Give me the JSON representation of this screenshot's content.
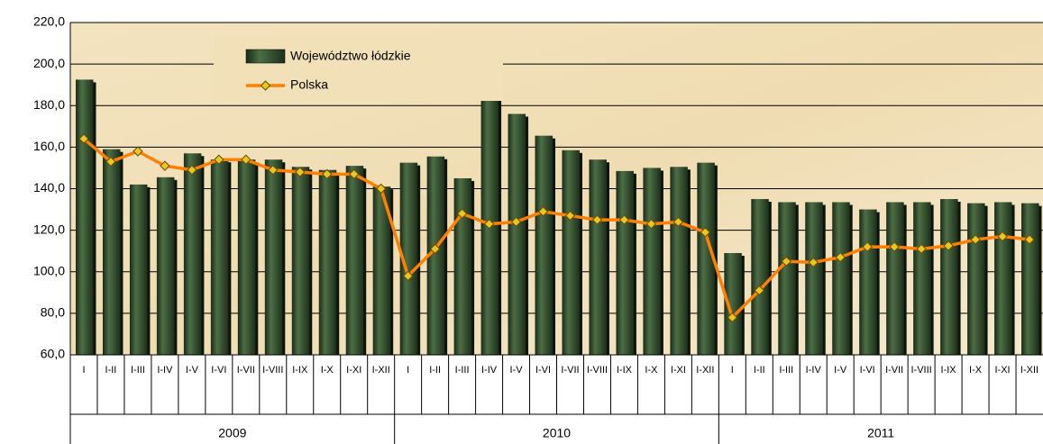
{
  "chart_data": {
    "type": "bar-line",
    "categories": [
      "I",
      "I-II",
      "I-III",
      "I-IV",
      "I-V",
      "I-VI",
      "I-VII",
      "I-VIII",
      "I-IX",
      "I-X",
      "I-XI",
      "I-XII",
      "I",
      "I-II",
      "I-III",
      "I-IV",
      "I-V",
      "I-VI",
      "I-VII",
      "I-VIII",
      "I-IX",
      "I-X",
      "I-XI",
      "I-XII",
      "I",
      "I-II",
      "I-III",
      "I-IV",
      "I-V",
      "I-VI",
      "I-VII",
      "I-VIII",
      "I-IX",
      "I-X",
      "I-XI",
      "I-XII"
    ],
    "category_groups": [
      "2009",
      "2010",
      "2011"
    ],
    "series": [
      {
        "name": "Województwo łódzkie",
        "type": "bar",
        "color": "#2f4a2a",
        "values": [
          192.5,
          159,
          142,
          145.5,
          157,
          154,
          154,
          154,
          150.5,
          149,
          151,
          141,
          152.5,
          155.5,
          145,
          188.5,
          176,
          165.5,
          158.5,
          154,
          148.5,
          150,
          150.5,
          152.5,
          109,
          135,
          133.5,
          133.5,
          133.5,
          130,
          133.5,
          133.5,
          135,
          133,
          133.5,
          133
        ]
      },
      {
        "name": "Polska",
        "type": "line",
        "color": "#ff7f00",
        "values": [
          164,
          153,
          158,
          151,
          149,
          154,
          154,
          149,
          148,
          147,
          147,
          140,
          98,
          111,
          128,
          123,
          124,
          129,
          127,
          125,
          125,
          123,
          124,
          119,
          78,
          91,
          105,
          104.5,
          107,
          112,
          112,
          111,
          112.5,
          115.5,
          117,
          115.5
        ]
      }
    ],
    "ylim": [
      60,
      220
    ],
    "yticks": [
      {
        "value": 60,
        "label": "60,0"
      },
      {
        "value": 80,
        "label": "80,0"
      },
      {
        "value": 100,
        "label": "100,0"
      },
      {
        "value": 120,
        "label": "120,0"
      },
      {
        "value": 140,
        "label": "140,0"
      },
      {
        "value": 160,
        "label": "160,0"
      },
      {
        "value": 180,
        "label": "180,0"
      },
      {
        "value": 200,
        "label": "200,0"
      },
      {
        "value": 220,
        "label": "220,0"
      }
    ],
    "grid": true
  }
}
